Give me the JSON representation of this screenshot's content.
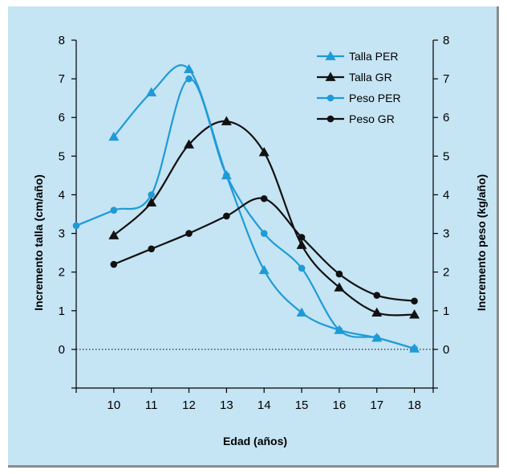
{
  "chart_data": {
    "type": "line",
    "title": "",
    "xlabel": "Edad (años)",
    "ylabel_left": "Incremento talla (cm/año)",
    "ylabel_right": "Incremento peso (kg/año)",
    "xlim": [
      9,
      18.5
    ],
    "ylim_left": [
      -1,
      8
    ],
    "ylim_right": [
      -1,
      8
    ],
    "x_ticks": [
      10,
      11,
      12,
      13,
      14,
      15,
      16,
      17,
      18
    ],
    "y_ticks": [
      0,
      1,
      2,
      3,
      4,
      5,
      6,
      7,
      8
    ],
    "grid": false,
    "legend_position": "top-right",
    "series": [
      {
        "name": "Talla PER",
        "axis": "left",
        "marker": "triangle",
        "color": "#1e9bd7",
        "x": [
          10,
          11,
          12,
          13,
          14,
          15,
          16,
          17,
          18
        ],
        "y": [
          5.5,
          6.65,
          7.25,
          4.5,
          2.05,
          0.95,
          0.5,
          0.3,
          0.02
        ]
      },
      {
        "name": "Talla GR",
        "axis": "left",
        "marker": "triangle",
        "color": "#111111",
        "x": [
          10,
          11,
          12,
          13,
          14,
          15,
          16,
          17,
          18
        ],
        "y": [
          2.95,
          3.8,
          5.3,
          5.9,
          5.1,
          2.7,
          1.6,
          0.95,
          0.9
        ]
      },
      {
        "name": "Peso PER",
        "axis": "right",
        "marker": "circle",
        "color": "#1e9bd7",
        "x": [
          9,
          10,
          11,
          12,
          13,
          14,
          15,
          16,
          17,
          18
        ],
        "y": [
          3.2,
          3.6,
          4.0,
          7.0,
          4.5,
          3.0,
          2.1,
          0.5,
          0.3,
          0.02
        ]
      },
      {
        "name": "Peso GR",
        "axis": "right",
        "marker": "circle",
        "color": "#111111",
        "x": [
          10,
          11,
          12,
          13,
          14,
          15,
          16,
          17,
          18
        ],
        "y": [
          2.2,
          2.6,
          3.0,
          3.45,
          3.9,
          2.9,
          1.95,
          1.4,
          1.25
        ]
      }
    ]
  }
}
